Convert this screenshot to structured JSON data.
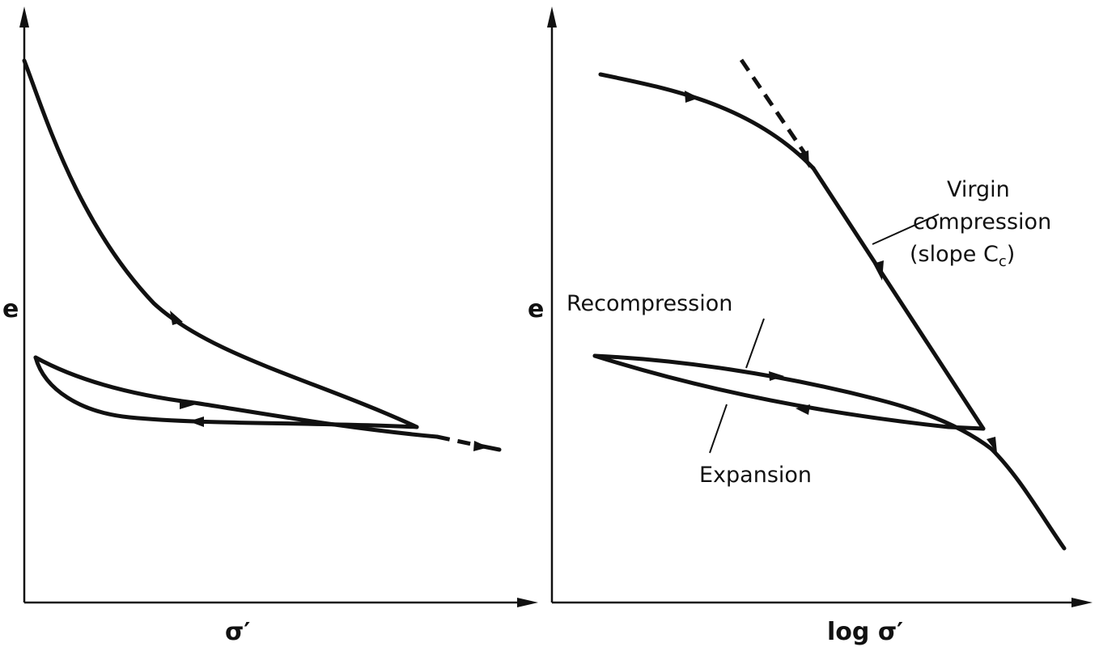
{
  "left_panel": {
    "y_axis_label": "e",
    "x_axis_label": "σ′"
  },
  "right_panel": {
    "y_axis_label": "e",
    "x_axis_label": "log σ′",
    "labels": {
      "virgin_line1": "Virgin",
      "virgin_line2": "compression",
      "virgin_line3_prefix": "(slope C",
      "virgin_line3_sub": "c",
      "virgin_line3_suffix": ")",
      "recompression": "Recompression",
      "expansion": "Expansion"
    }
  },
  "colors": {
    "ink": "#111111",
    "background": "#ffffff"
  }
}
